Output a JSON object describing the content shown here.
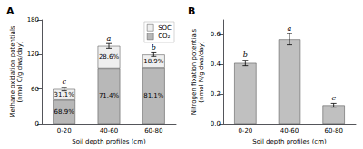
{
  "chart_data": [
    {
      "type": "bar",
      "title": "A",
      "stacked": true,
      "categories": [
        "0-20",
        "40-60",
        "60-80"
      ],
      "series": [
        {
          "name": "CO₂",
          "color": "#b8b8b8",
          "values": [
            41.3,
            96.4,
            97.3
          ],
          "annotations": [
            "68.9%",
            "71.4%",
            "81.1%"
          ]
        },
        {
          "name": "SOC",
          "color": "#efefef",
          "values": [
            18.7,
            38.6,
            22.7
          ],
          "annotations": [
            "31.1%",
            "28.6%",
            "18.9%"
          ]
        }
      ],
      "error_bars": [
        3,
        4,
        3
      ],
      "annotations": [
        "c",
        "a",
        "b"
      ],
      "xlabel": "Soil depth profiles (cm)",
      "ylabel": "Methane oxidation potentials\n(nmol C/g dws/day)",
      "ylim": [
        0,
        180
      ],
      "yticks": [
        0,
        60,
        120,
        180
      ],
      "legend": "upper right",
      "grid": false
    },
    {
      "type": "bar",
      "title": "B",
      "categories": [
        "0-20",
        "40-60",
        "60-80"
      ],
      "values": [
        0.41,
        0.57,
        0.125
      ],
      "color": "#c0c0c0",
      "error_bars": [
        0.018,
        0.038,
        0.013
      ],
      "annotations": [
        "b",
        "a",
        "c"
      ],
      "xlabel": "Soil depth profiles (cm)",
      "ylabel": "Nitrogen fixation potentials\n(nmol N/g dws/day)",
      "ylim": [
        0,
        0.7
      ],
      "yticks": [
        {
          "value": 0,
          "label": "0.0"
        },
        0.2,
        0.4,
        0.6
      ],
      "grid": false
    }
  ]
}
